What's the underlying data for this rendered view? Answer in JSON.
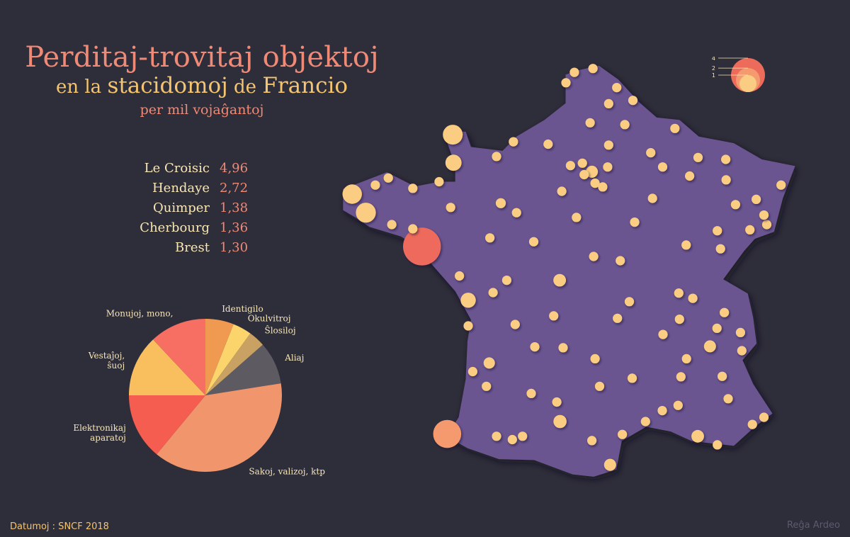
{
  "title": {
    "line1": "Perditaj-trovitaj objektoj",
    "line2_a": "en la ",
    "line2_b": "stacidomoj",
    "line2_c": " de ",
    "line2_d": "Francio",
    "line3": "per mil vojaĝantoj"
  },
  "colors": {
    "background": "#2e2d3a",
    "map_fill": "#6a5490",
    "station_small": "#fbcd83",
    "station_large": "#ed6b5b"
  },
  "ranking": [
    {
      "name": "Le Croisic",
      "value": "4,96"
    },
    {
      "name": "Hendaye",
      "value": "2,72"
    },
    {
      "name": "Quimper",
      "value": "1,38"
    },
    {
      "name": "Cherbourg",
      "value": "1,36"
    },
    {
      "name": "Brest",
      "value": "1,30"
    }
  ],
  "source": "Datumoj : SNCF 2018",
  "credit": "Reĝa Ardeo",
  "chart_data": [
    {
      "type": "pie",
      "start_angle_deg": 0,
      "direction": "clockwise",
      "slices": [
        {
          "label": "Identigilo",
          "value": 6,
          "color": "#ef9a50"
        },
        {
          "label": "Okulvitroj",
          "value": 4,
          "color": "#fbd46c"
        },
        {
          "label": "Ŝlosiloj",
          "value": 3.5,
          "color": "#c9a163"
        },
        {
          "label": "Aliaj",
          "value": 9,
          "color": "#5d5a62"
        },
        {
          "label": "Sakoj, valizoj, ktp",
          "value": 38.5,
          "color": "#f0956c"
        },
        {
          "label": "Elektronikaj aparatoj",
          "value": 14,
          "color": "#f45d4f"
        },
        {
          "label": "Vestaĵoj, ŝuoj",
          "value": 13,
          "color": "#f9bf5e"
        },
        {
          "label": "Monujoj, mono,",
          "value": 12,
          "color": "#f76f63"
        }
      ]
    },
    {
      "type": "scatter",
      "description_of_encoding": "bubble area = lost objects per thousand travellers",
      "size_legend": {
        "values": [
          1,
          2,
          4
        ]
      },
      "points": [
        {
          "lon": -2.5,
          "lat": 47.29,
          "value": 4.96
        },
        {
          "lon": -1.78,
          "lat": 43.35,
          "value": 2.72
        },
        {
          "lon": -4.1,
          "lat": 48.0,
          "value": 1.38
        },
        {
          "lon": -1.62,
          "lat": 49.64,
          "value": 1.36
        },
        {
          "lon": -4.49,
          "lat": 48.39,
          "value": 1.3
        },
        {
          "lon": -1.6,
          "lat": 49.05,
          "value": 0.9
        },
        {
          "lon": -1.18,
          "lat": 46.16,
          "value": 0.8
        },
        {
          "lon": 1.44,
          "lat": 43.61,
          "value": 0.6
        },
        {
          "lon": -0.58,
          "lat": 44.84,
          "value": 0.45
        },
        {
          "lon": 5.37,
          "lat": 43.3,
          "value": 0.55
        },
        {
          "lon": 5.72,
          "lat": 45.19,
          "value": 0.5
        },
        {
          "lon": 2.35,
          "lat": 48.86,
          "value": 0.5
        },
        {
          "lon": 1.43,
          "lat": 46.58,
          "value": 0.55
        },
        {
          "lon": 2.87,
          "lat": 42.7,
          "value": 0.5
        },
        {
          "lon": -0.25,
          "lat": 48.2,
          "value": 0.35
        },
        {
          "lon": -1.68,
          "lat": 48.11,
          "value": 0.3
        },
        {
          "lon": -0.56,
          "lat": 47.47,
          "value": 0.3
        },
        {
          "lon": 3.06,
          "lat": 50.63,
          "value": 0.3
        },
        {
          "lon": 2.3,
          "lat": 49.89,
          "value": 0.3
        },
        {
          "lon": 1.1,
          "lat": 49.44,
          "value": 0.3
        },
        {
          "lon": 0.11,
          "lat": 49.49,
          "value": 0.3
        },
        {
          "lon": -0.37,
          "lat": 49.18,
          "value": 0.3
        },
        {
          "lon": 4.03,
          "lat": 49.26,
          "value": 0.3
        },
        {
          "lon": 6.18,
          "lat": 48.69,
          "value": 0.3
        },
        {
          "lon": 7.75,
          "lat": 48.58,
          "value": 0.3
        },
        {
          "lon": 7.34,
          "lat": 47.75,
          "value": 0.3
        },
        {
          "lon": 6.02,
          "lat": 47.24,
          "value": 0.3
        },
        {
          "lon": 5.04,
          "lat": 47.32,
          "value": 0.3
        },
        {
          "lon": 4.85,
          "lat": 45.76,
          "value": 0.3
        },
        {
          "lon": 3.08,
          "lat": 45.78,
          "value": 0.3
        },
        {
          "lon": 1.26,
          "lat": 45.83,
          "value": 0.3
        },
        {
          "lon": 0.16,
          "lat": 45.65,
          "value": 0.3
        },
        {
          "lon": 0.69,
          "lat": 47.39,
          "value": 0.3
        },
        {
          "lon": 1.91,
          "lat": 47.9,
          "value": 0.3
        },
        {
          "lon": 2.4,
          "lat": 47.08,
          "value": 0.3
        },
        {
          "lon": 3.88,
          "lat": 43.61,
          "value": 0.3
        },
        {
          "lon": 4.36,
          "lat": 43.84,
          "value": 0.3
        },
        {
          "lon": 4.81,
          "lat": 43.95,
          "value": 0.3
        },
        {
          "lon": 7.26,
          "lat": 43.7,
          "value": 0.3
        },
        {
          "lon": 5.93,
          "lat": 43.12,
          "value": 0.3
        },
        {
          "lon": 6.93,
          "lat": 43.55,
          "value": 0.3
        },
        {
          "lon": 0.37,
          "lat": 43.3,
          "value": 0.3
        },
        {
          "lon": 0.08,
          "lat": 43.23,
          "value": 0.3
        },
        {
          "lon": -0.37,
          "lat": 43.3,
          "value": 0.3
        },
        {
          "lon": 3.22,
          "lat": 43.34,
          "value": 0.3
        },
        {
          "lon": 2.35,
          "lat": 43.21,
          "value": 0.3
        },
        {
          "lon": 1.35,
          "lat": 44.02,
          "value": 0.3
        },
        {
          "lon": 0.62,
          "lat": 44.2,
          "value": 0.3
        },
        {
          "lon": 2.57,
          "lat": 44.35,
          "value": 0.3
        },
        {
          "lon": 1.53,
          "lat": 45.16,
          "value": 0.3
        },
        {
          "lon": 0.72,
          "lat": 45.18,
          "value": 0.3
        },
        {
          "lon": 3.42,
          "lat": 46.13,
          "value": 0.3
        },
        {
          "lon": 4.38,
          "lat": 45.44,
          "value": 0.3
        },
        {
          "lon": 5.92,
          "lat": 45.57,
          "value": 0.3
        },
        {
          "lon": 6.13,
          "lat": 45.9,
          "value": 0.3
        },
        {
          "lon": 5.23,
          "lat": 46.2,
          "value": 0.3
        },
        {
          "lon": 4.83,
          "lat": 46.31,
          "value": 0.3
        },
        {
          "lon": 3.16,
          "lat": 46.99,
          "value": 0.3
        },
        {
          "lon": 3.57,
          "lat": 47.8,
          "value": 0.3
        },
        {
          "lon": 4.08,
          "lat": 48.3,
          "value": 0.3
        },
        {
          "lon": 5.14,
          "lat": 48.77,
          "value": 0.3
        },
        {
          "lon": 6.45,
          "lat": 48.17,
          "value": 0.3
        },
        {
          "lon": 6.86,
          "lat": 47.64,
          "value": 0.3
        },
        {
          "lon": 5.93,
          "lat": 47.62,
          "value": 0.3
        },
        {
          "lon": 0.2,
          "lat": 48.0,
          "value": 0.3
        },
        {
          "lon": -0.08,
          "lat": 46.58,
          "value": 0.3
        },
        {
          "lon": -0.47,
          "lat": 46.32,
          "value": 0.3
        },
        {
          "lon": -1.43,
          "lat": 46.67,
          "value": 0.3
        },
        {
          "lon": -2.76,
          "lat": 47.66,
          "value": 0.3
        },
        {
          "lon": -3.36,
          "lat": 47.75,
          "value": 0.3
        },
        {
          "lon": -2.76,
          "lat": 48.51,
          "value": 0.3
        },
        {
          "lon": -3.46,
          "lat": 48.73,
          "value": 0.3
        },
        {
          "lon": -3.83,
          "lat": 48.58,
          "value": 0.3
        },
        {
          "lon": -2.01,
          "lat": 48.65,
          "value": 0.3
        },
        {
          "lon": 1.85,
          "lat": 50.95,
          "value": 0.3
        },
        {
          "lon": 1.61,
          "lat": 50.73,
          "value": 0.3
        },
        {
          "lon": 2.38,
          "lat": 51.03,
          "value": 0.3
        },
        {
          "lon": 2.83,
          "lat": 50.29,
          "value": 0.3
        },
        {
          "lon": 3.52,
          "lat": 50.36,
          "value": 0.3
        },
        {
          "lon": 3.29,
          "lat": 49.85,
          "value": 0.3
        },
        {
          "lon": 2.83,
          "lat": 49.42,
          "value": 0.3
        },
        {
          "lon": 2.08,
          "lat": 49.04,
          "value": 0.3
        },
        {
          "lon": 2.13,
          "lat": 48.8,
          "value": 0.3
        },
        {
          "lon": 2.44,
          "lat": 48.62,
          "value": 0.3
        },
        {
          "lon": 2.66,
          "lat": 48.54,
          "value": 0.3
        },
        {
          "lon": 2.8,
          "lat": 48.96,
          "value": 0.3
        },
        {
          "lon": 1.74,
          "lat": 48.99,
          "value": 0.3
        },
        {
          "lon": 1.49,
          "lat": 48.45,
          "value": 0.3
        },
        {
          "lon": 4.37,
          "lat": 48.96,
          "value": 0.3
        },
        {
          "lon": 4.72,
          "lat": 49.77,
          "value": 0.3
        },
        {
          "lon": 5.38,
          "lat": 49.16,
          "value": 0.3
        },
        {
          "lon": 6.17,
          "lat": 49.12,
          "value": 0.3
        },
        {
          "lon": 7.04,
          "lat": 48.28,
          "value": 0.3
        },
        {
          "lon": 7.26,
          "lat": 47.95,
          "value": 0.3
        },
        {
          "lon": 6.59,
          "lat": 45.48,
          "value": 0.3
        },
        {
          "lon": 6.63,
          "lat": 45.1,
          "value": 0.3
        },
        {
          "lon": 5.05,
          "lat": 44.93,
          "value": 0.3
        },
        {
          "lon": 4.89,
          "lat": 44.55,
          "value": 0.3
        },
        {
          "lon": 6.07,
          "lat": 44.56,
          "value": 0.3
        },
        {
          "lon": 6.24,
          "lat": 44.09,
          "value": 0.3
        },
        {
          "lon": 2.44,
          "lat": 44.93,
          "value": 0.3
        },
        {
          "lon": 3.5,
          "lat": 44.52,
          "value": 0.3
        },
        {
          "lon": -1.05,
          "lat": 44.66,
          "value": 0.3
        },
        {
          "lon": -1.18,
          "lat": 45.62,
          "value": 0.3
        },
        {
          "lon": -0.66,
          "lat": 44.35,
          "value": 0.3
        }
      ]
    }
  ]
}
